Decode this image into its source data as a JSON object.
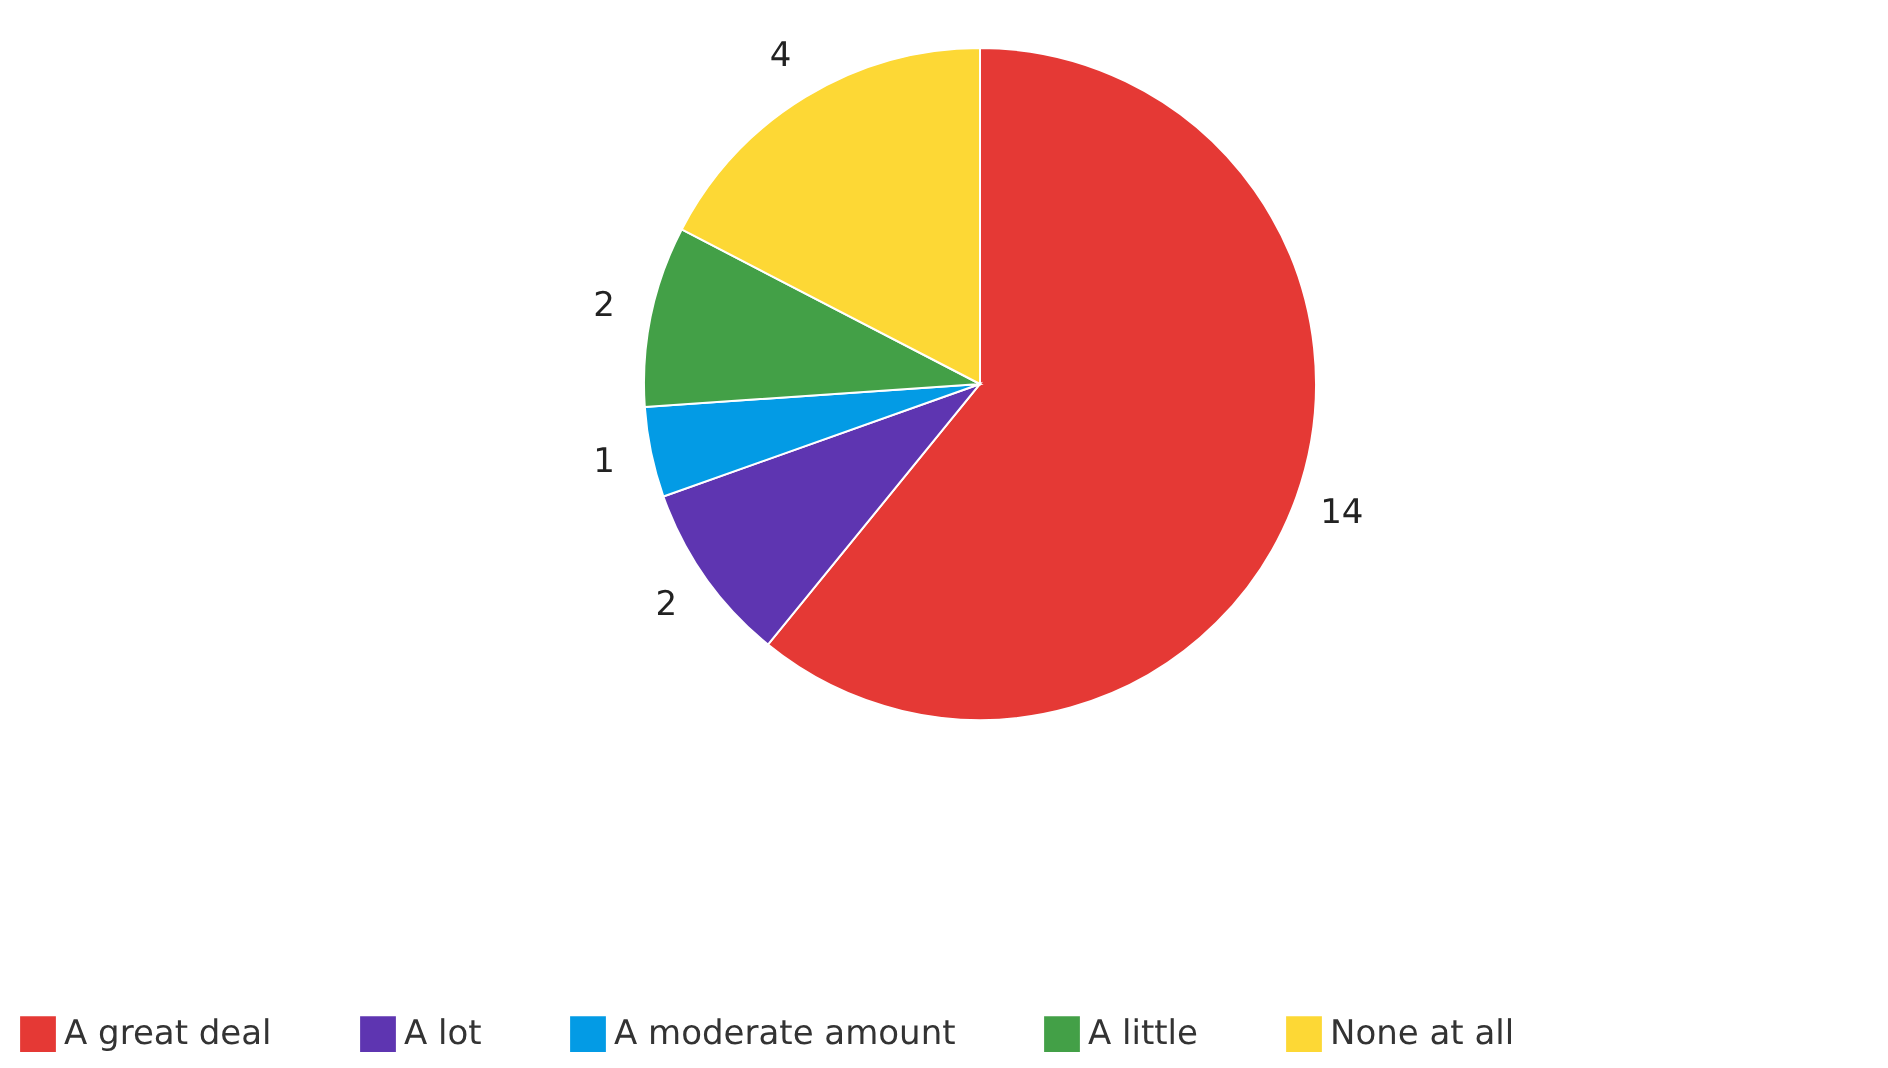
{
  "chart_data": {
    "type": "pie",
    "categories": [
      "A great deal",
      "A lot",
      "A moderate amount",
      "A little",
      "None at all"
    ],
    "values": [
      14,
      2,
      1,
      2,
      4
    ],
    "colors": [
      "#e53935",
      "#5e35b1",
      "#039be5",
      "#43a047",
      "#fdd835"
    ],
    "data_labels": true,
    "legend": "bottom"
  }
}
